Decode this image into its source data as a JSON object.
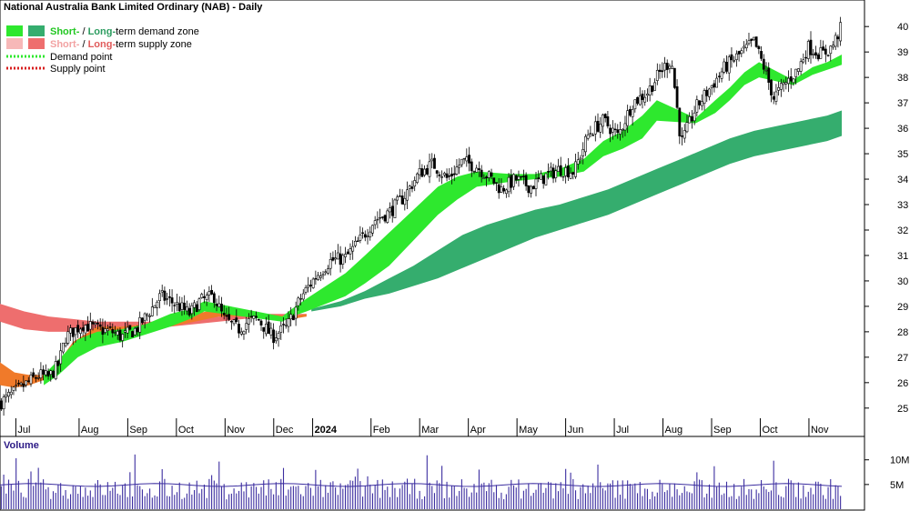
{
  "header": {
    "title": "National Australia Bank Limited Ordinary (NAB) - Daily"
  },
  "legend": {
    "row1": {
      "short": "Short-",
      "sep": " / ",
      "long": "Long-",
      "rest": "term demand zone"
    },
    "row2": {
      "short": "Short-",
      "sep": " / ",
      "long": "Long-",
      "rest": "term supply zone"
    },
    "row3": "Demand point",
    "row4": "Supply point"
  },
  "colors": {
    "short_demand": "#2ee82e",
    "long_demand": "#35ad6e",
    "short_supply": "#f7b8b8",
    "long_supply": "#ee6e6e",
    "short_supply_dark": "#f07a2a",
    "candle": "#000000",
    "volume_bar": "#3c2ea0",
    "volume_avg": "#3c2ea0",
    "grid": "#cfcfcf"
  },
  "chart_data": {
    "type": "candlestick",
    "title": "National Australia Bank Limited Ordinary (NAB) - Daily",
    "x_axis": {
      "labels": [
        "Jul",
        "Aug",
        "Sep",
        "Oct",
        "Nov",
        "Dec",
        "2024",
        "Feb",
        "Mar",
        "Apr",
        "May",
        "Jun",
        "Jul",
        "Aug",
        "Sep",
        "Oct",
        "Nov"
      ],
      "positions": [
        0.7,
        2.0,
        3.0,
        4.0,
        5.0,
        6.0,
        6.8,
        8.0,
        9.0,
        10.0,
        11.0,
        12.0,
        13.0,
        14.0,
        15.0,
        16.0,
        17.0
      ]
    },
    "y_axis": {
      "ticks": [
        25,
        26,
        27,
        28,
        29,
        30,
        31,
        32,
        33,
        34,
        35,
        36,
        37,
        38,
        39,
        40
      ],
      "range": [
        24.6,
        40.4
      ]
    },
    "price_path": [
      [
        0.0,
        25.2
      ],
      [
        0.5,
        25.9
      ],
      [
        0.8,
        26.3
      ],
      [
        1.0,
        26.2
      ],
      [
        1.2,
        26.7
      ],
      [
        1.35,
        27.8
      ],
      [
        1.7,
        28.3
      ],
      [
        2.0,
        28.1
      ],
      [
        2.3,
        28.0
      ],
      [
        2.5,
        27.8
      ],
      [
        2.8,
        28.1
      ],
      [
        3.0,
        28.6
      ],
      [
        3.3,
        29.4
      ],
      [
        3.6,
        29.1
      ],
      [
        3.9,
        28.7
      ],
      [
        4.1,
        29.2
      ],
      [
        4.4,
        29.4
      ],
      [
        4.6,
        28.5
      ],
      [
        4.9,
        28.1
      ],
      [
        5.1,
        28.4
      ],
      [
        5.3,
        28.5
      ],
      [
        5.6,
        27.8
      ],
      [
        5.9,
        28.2
      ],
      [
        6.2,
        29.4
      ],
      [
        6.5,
        30.2
      ],
      [
        6.8,
        30.8
      ],
      [
        7.1,
        30.9
      ],
      [
        7.4,
        31.6
      ],
      [
        7.7,
        32.4
      ],
      [
        8.0,
        32.7
      ],
      [
        8.3,
        33.3
      ],
      [
        8.6,
        34.2
      ],
      [
        8.9,
        34.6
      ],
      [
        9.2,
        34.0
      ],
      [
        9.5,
        34.7
      ],
      [
        9.8,
        34.5
      ],
      [
        10.1,
        34.0
      ],
      [
        10.3,
        33.6
      ],
      [
        10.6,
        34.0
      ],
      [
        10.9,
        33.7
      ],
      [
        11.2,
        34.1
      ],
      [
        11.5,
        34.4
      ],
      [
        11.8,
        34.3
      ],
      [
        12.1,
        35.8
      ],
      [
        12.4,
        36.3
      ],
      [
        12.7,
        35.7
      ],
      [
        13.0,
        37.0
      ],
      [
        13.3,
        37.4
      ],
      [
        13.6,
        38.3
      ],
      [
        13.8,
        38.7
      ],
      [
        14.0,
        35.4
      ],
      [
        14.3,
        36.8
      ],
      [
        14.6,
        37.6
      ],
      [
        14.9,
        38.4
      ],
      [
        15.2,
        38.9
      ],
      [
        15.5,
        39.4
      ],
      [
        15.7,
        38.4
      ],
      [
        15.9,
        37.2
      ],
      [
        16.2,
        37.9
      ],
      [
        16.4,
        38.3
      ],
      [
        16.6,
        39.2
      ],
      [
        16.9,
        38.9
      ],
      [
        17.1,
        39.2
      ],
      [
        17.3,
        40.0
      ]
    ],
    "short_term_demand_zone": {
      "x": [
        0.9,
        1.2,
        1.6,
        2.0,
        2.5,
        3.0,
        3.5,
        3.9,
        4.2,
        5.8,
        6.0,
        6.3,
        6.7,
        7.1,
        7.5,
        8.0,
        8.5,
        9.0,
        9.4,
        9.8,
        10.5,
        11.0,
        11.5,
        12.0,
        12.4,
        12.8,
        13.2,
        13.5,
        14.3,
        14.7,
        15.0,
        15.3,
        15.6,
        16.3,
        16.7,
        17.0,
        17.3
      ],
      "upper": [
        26.3,
        26.9,
        27.7,
        28.0,
        28.1,
        28.3,
        28.7,
        28.9,
        29.2,
        28.6,
        28.9,
        29.3,
        29.8,
        30.3,
        31.0,
        31.9,
        32.8,
        33.7,
        34.1,
        34.3,
        34.2,
        34.2,
        34.4,
        34.8,
        35.5,
        35.9,
        36.5,
        37.1,
        36.4,
        37.1,
        37.6,
        38.2,
        38.6,
        37.9,
        38.4,
        38.6,
        38.9
      ],
      "lower": [
        25.9,
        26.3,
        27.0,
        27.4,
        27.6,
        27.9,
        28.2,
        28.5,
        28.8,
        28.4,
        28.6,
        28.8,
        29.1,
        29.4,
        29.9,
        30.6,
        31.6,
        32.6,
        33.2,
        33.7,
        33.9,
        34.0,
        34.1,
        34.3,
        34.9,
        35.2,
        35.6,
        36.3,
        36.2,
        36.6,
        37.1,
        37.7,
        38.0,
        37.7,
        38.1,
        38.3,
        38.5
      ]
    },
    "long_term_demand_zone": {
      "x": [
        6.4,
        7.0,
        7.5,
        8.0,
        8.5,
        9.0,
        9.5,
        10.0,
        10.5,
        11.0,
        11.5,
        12.0,
        12.5,
        13.0,
        13.5,
        14.0,
        14.5,
        15.0,
        15.5,
        16.0,
        16.5,
        17.0,
        17.3
      ],
      "upper": [
        28.9,
        29.2,
        29.6,
        30.1,
        30.6,
        31.2,
        31.8,
        32.2,
        32.5,
        32.8,
        33.0,
        33.3,
        33.6,
        34.0,
        34.4,
        34.8,
        35.2,
        35.6,
        35.9,
        36.1,
        36.3,
        36.5,
        36.7
      ],
      "lower": [
        28.8,
        29.0,
        29.3,
        29.5,
        29.8,
        30.1,
        30.5,
        30.9,
        31.3,
        31.7,
        32.0,
        32.3,
        32.6,
        33.0,
        33.4,
        33.8,
        34.2,
        34.6,
        34.9,
        35.1,
        35.3,
        35.5,
        35.7
      ]
    },
    "short_term_supply_zone": {
      "x": [
        0.0,
        0.3,
        0.6,
        0.9,
        1.2,
        1.5,
        2.0,
        2.5,
        3.0,
        3.5,
        4.0,
        4.5,
        5.0,
        5.5,
        6.0,
        6.3
      ],
      "upper": [
        26.8,
        26.4,
        26.3,
        26.3,
        26.8,
        27.6,
        28.2,
        28.2,
        28.3,
        28.5,
        28.7,
        28.9,
        28.8,
        28.7,
        28.6,
        28.7
      ],
      "lower": [
        25.9,
        25.8,
        25.9,
        26.1,
        26.4,
        27.0,
        27.7,
        27.8,
        28.0,
        28.2,
        28.4,
        28.6,
        28.6,
        28.5,
        28.5,
        28.6
      ]
    },
    "long_term_supply_zone": {
      "x": [
        0.0,
        0.5,
        1.0,
        1.5,
        2.0,
        2.5,
        3.0,
        3.5,
        4.0,
        4.5,
        5.0,
        5.5,
        6.0,
        6.3
      ],
      "upper": [
        29.1,
        28.8,
        28.6,
        28.5,
        28.4,
        28.4,
        28.4,
        28.4,
        28.5,
        28.6,
        28.7,
        28.7,
        28.7,
        28.7
      ],
      "lower": [
        28.4,
        28.1,
        28.0,
        28.0,
        28.0,
        28.0,
        28.1,
        28.2,
        28.3,
        28.4,
        28.5,
        28.6,
        28.6,
        28.6
      ]
    },
    "volume": {
      "label": "Volume",
      "ticks": [
        {
          "label": "10M",
          "value": 10000000
        },
        {
          "label": "5M",
          "value": 5000000
        }
      ],
      "range": [
        0,
        14000000
      ],
      "average_level": 4900000
    },
    "grid": false,
    "legend_position": "top-left"
  }
}
